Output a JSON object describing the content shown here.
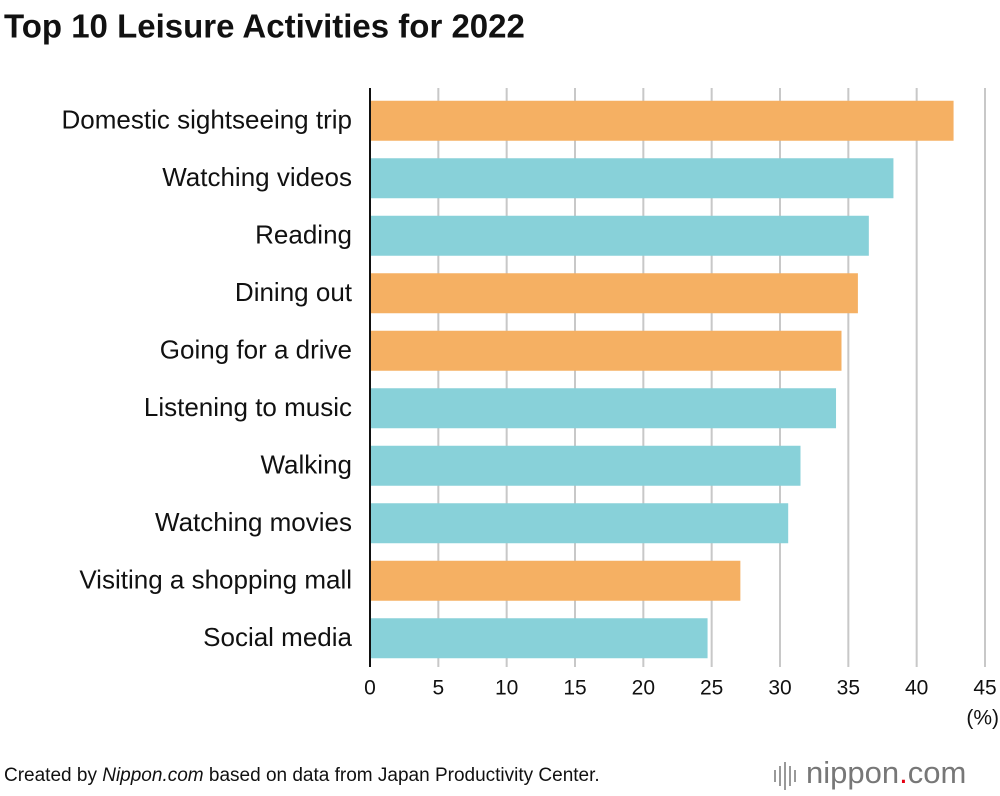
{
  "chart_data": {
    "type": "bar",
    "orientation": "horizontal",
    "title": "Top 10 Leisure Activities for 2022",
    "categories": [
      "Domestic sightseeing trip",
      "Watching videos",
      "Reading",
      "Dining out",
      "Going for a drive",
      "Listening to music",
      "Walking",
      "Watching movies",
      "Visiting a shopping mall",
      "Social media"
    ],
    "values": [
      42.7,
      38.3,
      36.5,
      35.7,
      34.5,
      34.1,
      31.5,
      30.6,
      27.1,
      24.7
    ],
    "colors": [
      "#f5b063",
      "#88d1d9",
      "#88d1d9",
      "#f5b063",
      "#f5b063",
      "#88d1d9",
      "#88d1d9",
      "#88d1d9",
      "#f5b063",
      "#88d1d9"
    ],
    "xlim": [
      0,
      45
    ],
    "xticks": [
      0,
      5,
      10,
      15,
      20,
      25,
      30,
      35,
      40,
      45
    ],
    "grid": true,
    "x_label": "(%)",
    "source": [
      "Created by ",
      "Nippon.com",
      " based on data from Japan Productivity Center."
    ],
    "logo": [
      "nippon",
      ".",
      "com"
    ]
  }
}
